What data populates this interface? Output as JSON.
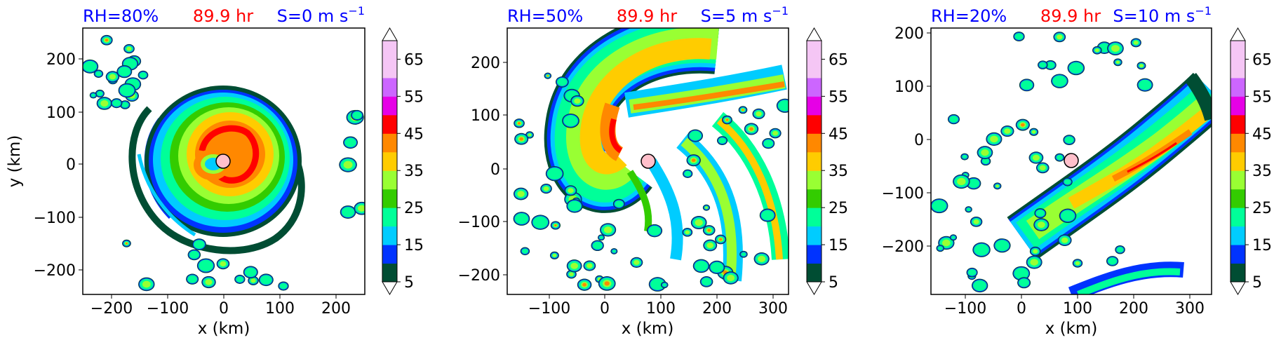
{
  "colors": {
    "title_left": "#0000ff",
    "title_center": "#ff0000",
    "title_right": "#0000ff",
    "storm_center_marker": "#ffc0cb",
    "colorbar_levels": [
      "#004d33",
      "#0033ff",
      "#00ccff",
      "#00ff99",
      "#33cc00",
      "#99ff33",
      "#ffcc00",
      "#ff8800",
      "#ff0000",
      "#e600e6",
      "#cc66ff",
      "#f5c6f5"
    ]
  },
  "chart_data": [
    {
      "type": "heatmap",
      "title_left": "RH=80%",
      "title_center": "89.9 hr",
      "title_right_text": "S=0 m s",
      "title_right_exp": "−1",
      "xlabel": "x (km)",
      "ylabel": "y (km)",
      "xlim": [
        -250,
        250
      ],
      "ylim": [
        -245,
        255
      ],
      "xticks": [
        -200,
        -100,
        0,
        100,
        200
      ],
      "yticks": [
        -200,
        -100,
        0,
        100,
        200
      ],
      "storm_center": [
        0,
        5
      ],
      "colorbar": {
        "levels": [
          5,
          10,
          15,
          20,
          25,
          30,
          35,
          40,
          45,
          50,
          55,
          60,
          65,
          70
        ],
        "tick_labels": [
          "5",
          "15",
          "25",
          "35",
          "45",
          "55",
          "65"
        ],
        "extend": "both"
      }
    },
    {
      "type": "heatmap",
      "title_left": "RH=50%",
      "title_center": "89.9 hr",
      "title_right_text": "S=5 m s",
      "title_right_exp": "−1",
      "xlabel": "x (km)",
      "ylabel": "",
      "xlim": [
        -170,
        330
      ],
      "ylim": [
        -235,
        265
      ],
      "xticks": [
        -100,
        0,
        100,
        200,
        300
      ],
      "yticks": [
        -200,
        -100,
        0,
        100,
        200
      ],
      "storm_center": [
        78,
        15
      ],
      "colorbar": {
        "levels": [
          5,
          10,
          15,
          20,
          25,
          30,
          35,
          40,
          45,
          50,
          55,
          60,
          65,
          70
        ],
        "tick_labels": [
          "5",
          "15",
          "25",
          "35",
          "45",
          "55",
          "65"
        ],
        "extend": "both"
      }
    },
    {
      "type": "heatmap",
      "title_left": "RH=20%",
      "title_center": "89.9 hr",
      "title_right_text": "S=10 m s",
      "title_right_exp": "−1",
      "xlabel": "x (km)",
      "ylabel": "",
      "xlim": [
        -160,
        340
      ],
      "ylim": [
        -290,
        210
      ],
      "xticks": [
        -100,
        0,
        100,
        200,
        300
      ],
      "yticks": [
        -200,
        -100,
        0,
        100,
        200
      ],
      "storm_center": [
        88,
        -42
      ],
      "colorbar": {
        "levels": [
          5,
          10,
          15,
          20,
          25,
          30,
          35,
          40,
          45,
          50,
          55,
          60,
          65,
          70
        ],
        "tick_labels": [
          "5",
          "15",
          "25",
          "35",
          "45",
          "55",
          "65"
        ],
        "extend": "both"
      }
    }
  ]
}
